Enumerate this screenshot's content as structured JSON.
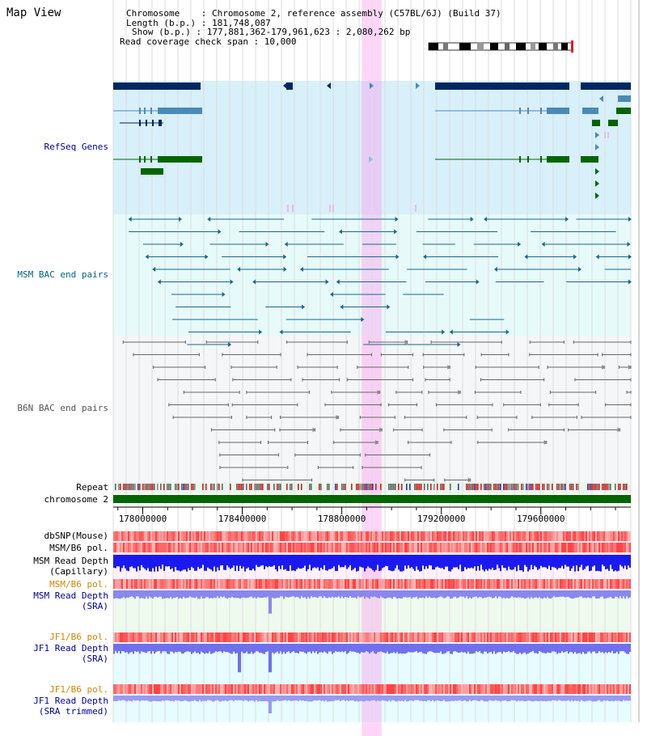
{
  "header": {
    "title": "Map View",
    "chromosome_line": "Chromosome    : Chromosome 2, reference assembly (C57BL/6J) (Build 37)",
    "length_line": "Length (b.p.) : 181,748,087",
    "show_line": "Show (b.p.) : 177,881,362-179,961,623 : 2,080,262 bp",
    "coverage_line": "Read coverage check span : 10,000"
  },
  "tracks": {
    "refseq": "RefSeq Genes",
    "msm_bac": "MSM BAC end pairs",
    "b6n_bac": "B6N BAC end pairs",
    "repeat": "Repeat",
    "chromosome": "chromosome 2",
    "dbsnp": "dbSNP(Mouse)",
    "msm_b6_pol_1": "MSM/B6 pol.",
    "msm_depth_cap_1": "MSM Read Depth",
    "msm_depth_cap_2": "(Capillary)",
    "msm_b6_pol_2": "MSM/B6 pol.",
    "msm_depth_sra_1": "MSM Read Depth",
    "msm_depth_sra_2": "(SRA)",
    "jf1_b6_pol_1": "JF1/B6 pol.",
    "jf1_depth_sra_1": "JF1 Read Depth",
    "jf1_depth_sra_2": "(SRA)",
    "jf1_b6_pol_2": "JF1/B6 pol.",
    "jf1_depth_trim_1": "JF1 Read Depth",
    "jf1_depth_trim_2": "(SRA trimmed)"
  },
  "ruler": {
    "ticks": [
      "178000000",
      "178400000",
      "178800000",
      "179200000",
      "179600000"
    ],
    "tick_positions_bp": [
      178000000,
      178400000,
      178800000,
      179200000,
      179600000
    ],
    "range_bp": [
      177881362,
      179961623
    ]
  },
  "highlight_bp": [
    178880000,
    178960000
  ],
  "colors": {
    "refseq_bg": "#d8f0fa",
    "msm_bg": "#e6fafa",
    "b6n_bg": "#f4f6f8",
    "highlight": "#ff99ee",
    "chromosome": "#006600",
    "gene_dark": "#002860",
    "gene_mid": "#4a8ab8",
    "gene_green": "#006600",
    "msm_line": "#1a6888",
    "b6n_line": "#666666",
    "title_blue": "#000099",
    "teal_label": "#006677",
    "pol_orange": "#cc8800",
    "sra_blue": "#000099"
  }
}
